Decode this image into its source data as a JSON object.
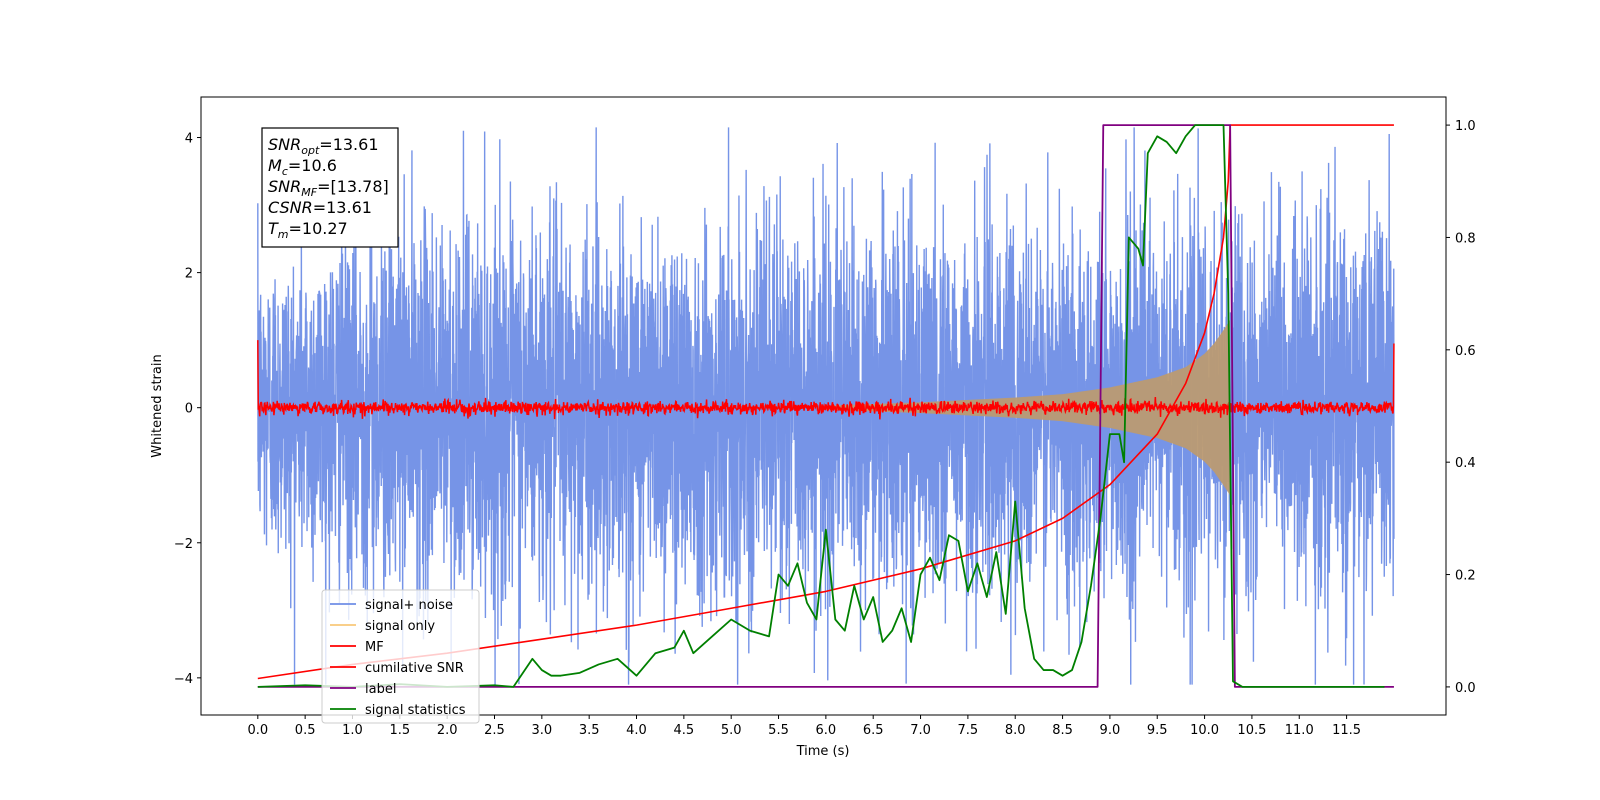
{
  "chart_data": {
    "type": "line",
    "xlabel": "Time (s)",
    "ylabel": "Whitened strain",
    "xlim": [
      -0.6,
      12.55
    ],
    "ylim": [
      -4.55,
      4.6
    ],
    "y2lim": [
      -0.05,
      1.05
    ],
    "x_ticks": [
      0.0,
      0.5,
      1.0,
      1.5,
      2.0,
      2.5,
      3.0,
      3.5,
      4.0,
      4.5,
      5.0,
      5.5,
      6.0,
      6.5,
      7.0,
      7.5,
      8.0,
      8.5,
      9.0,
      9.5,
      10.0,
      10.5,
      11.0,
      11.5
    ],
    "x_tick_labels": [
      "0.0",
      "0.5",
      "1.0",
      "1.5",
      "2.0",
      "2.5",
      "3.0",
      "3.5",
      "4.0",
      "4.5",
      "5.0",
      "5.5",
      "6.0",
      "6.5",
      "7.0",
      "7.5",
      "8.0",
      "8.5",
      "9.0",
      "9.5",
      "10.0",
      "10.5",
      "11.0",
      "11.5"
    ],
    "y_ticks": [
      -4,
      -2,
      0,
      2,
      4
    ],
    "y_tick_labels": [
      "−4",
      "−2",
      "0",
      "2",
      "4"
    ],
    "y2_ticks": [
      0.0,
      0.2,
      0.4,
      0.6,
      0.8,
      1.0
    ],
    "y2_tick_labels": [
      "0.0",
      "0.2",
      "0.4",
      "0.6",
      "0.8",
      "1.0"
    ],
    "grid": false,
    "legend_position": "lower-left",
    "series": [
      {
        "name": "signal+ noise",
        "axis": "left",
        "color": "#6f8ee6",
        "x_range": [
          0.0,
          12.0
        ],
        "envelope_upper": [
          2.4,
          2.6,
          2.8,
          3.0,
          3.0,
          3.0,
          3.0,
          3.0,
          3.0,
          3.0,
          3.0,
          3.0,
          3.0,
          3.0,
          3.0,
          3.0,
          3.0,
          3.0,
          3.0,
          3.0,
          3.0,
          3.0,
          3.0,
          3.0,
          3.0
        ],
        "envelope_lower": [
          -2.4,
          -2.6,
          -2.8,
          -3.0,
          -3.0,
          -3.0,
          -3.0,
          -3.0,
          -3.0,
          -3.0,
          -3.0,
          -3.0,
          -3.0,
          -3.0,
          -3.0,
          -3.0,
          -3.0,
          -3.0,
          -3.0,
          -3.0,
          -3.0,
          -3.0,
          -3.0,
          -3.0,
          -3.0
        ],
        "peak_max": 4.15,
        "peak_min": -4.1
      },
      {
        "name": "signal only",
        "axis": "left",
        "color": "#f5b041",
        "visible_fill_color": "#bb9a72",
        "x": [
          6.0,
          7.0,
          8.0,
          8.5,
          9.0,
          9.5,
          9.8,
          10.0,
          10.1,
          10.2,
          10.27
        ],
        "amplitude": [
          0.03,
          0.08,
          0.15,
          0.2,
          0.3,
          0.45,
          0.6,
          0.8,
          0.95,
          1.15,
          1.3
        ]
      },
      {
        "name": "MF",
        "axis": "left",
        "color": "#ff0000",
        "x_range": [
          0.0,
          12.0
        ],
        "noise_amplitude": 0.12,
        "start_value": 1.0,
        "end_value": 0.95
      },
      {
        "name": "cumilative SNR",
        "axis": "right",
        "color": "#ff0000",
        "x": [
          0.0,
          1.0,
          2.0,
          3.0,
          4.0,
          5.0,
          6.0,
          7.0,
          8.0,
          8.5,
          9.0,
          9.5,
          9.8,
          10.0,
          10.1,
          10.2,
          10.25,
          10.27,
          10.28,
          12.0
        ],
        "values": [
          0.015,
          0.04,
          0.06,
          0.085,
          0.11,
          0.14,
          0.17,
          0.21,
          0.26,
          0.3,
          0.36,
          0.45,
          0.54,
          0.63,
          0.7,
          0.8,
          0.9,
          1.0,
          1.0,
          1.0
        ]
      },
      {
        "name": "label",
        "axis": "right",
        "color": "#800080",
        "x": [
          0.0,
          8.87,
          8.93,
          10.27,
          10.32,
          12.0
        ],
        "values": [
          0.0,
          0.0,
          1.0,
          1.0,
          0.0,
          0.0
        ]
      },
      {
        "name": "signal statistics",
        "axis": "right",
        "color": "#008000",
        "x": [
          0.0,
          0.5,
          1.0,
          1.5,
          2.0,
          2.5,
          2.7,
          2.9,
          3.0,
          3.1,
          3.2,
          3.4,
          3.6,
          3.8,
          4.0,
          4.2,
          4.4,
          4.5,
          4.6,
          4.8,
          5.0,
          5.2,
          5.4,
          5.5,
          5.6,
          5.7,
          5.8,
          5.9,
          6.0,
          6.1,
          6.2,
          6.3,
          6.4,
          6.5,
          6.6,
          6.7,
          6.8,
          6.9,
          7.0,
          7.1,
          7.2,
          7.3,
          7.4,
          7.5,
          7.6,
          7.7,
          7.8,
          7.9,
          8.0,
          8.1,
          8.2,
          8.3,
          8.4,
          8.5,
          8.6,
          8.7,
          8.8,
          8.9,
          9.0,
          9.1,
          9.15,
          9.2,
          9.3,
          9.35,
          9.4,
          9.5,
          9.6,
          9.7,
          9.8,
          9.9,
          10.0,
          10.1,
          10.2,
          10.25,
          10.3,
          10.4,
          10.5,
          11.0,
          11.5,
          11.9
        ],
        "values": [
          0.0,
          0.003,
          0.0,
          0.005,
          0.0,
          0.003,
          0.0,
          0.05,
          0.03,
          0.02,
          0.02,
          0.025,
          0.04,
          0.05,
          0.02,
          0.06,
          0.07,
          0.1,
          0.06,
          0.09,
          0.12,
          0.1,
          0.09,
          0.2,
          0.18,
          0.22,
          0.15,
          0.12,
          0.28,
          0.12,
          0.1,
          0.18,
          0.12,
          0.16,
          0.08,
          0.1,
          0.14,
          0.08,
          0.2,
          0.23,
          0.19,
          0.27,
          0.26,
          0.17,
          0.22,
          0.16,
          0.24,
          0.13,
          0.33,
          0.14,
          0.05,
          0.03,
          0.03,
          0.02,
          0.03,
          0.08,
          0.18,
          0.3,
          0.45,
          0.45,
          0.4,
          0.8,
          0.78,
          0.75,
          0.95,
          0.98,
          0.97,
          0.95,
          0.98,
          1.0,
          1.0,
          1.0,
          1.0,
          0.7,
          0.01,
          0.0,
          0.0,
          0.0,
          0.0,
          0.0
        ]
      }
    ],
    "annotation": {
      "lines": [
        {
          "var": "SNR",
          "sub": "opt",
          "value": "=13.61"
        },
        {
          "var": "M",
          "sub": "c",
          "value": "=10.6"
        },
        {
          "var": "SNR",
          "sub": "MF",
          "value": "=[13.78]"
        },
        {
          "var": "CSNR",
          "sub": "",
          "value": "=13.61"
        },
        {
          "var": "T",
          "sub": "m",
          "value": "=10.27"
        }
      ]
    }
  }
}
